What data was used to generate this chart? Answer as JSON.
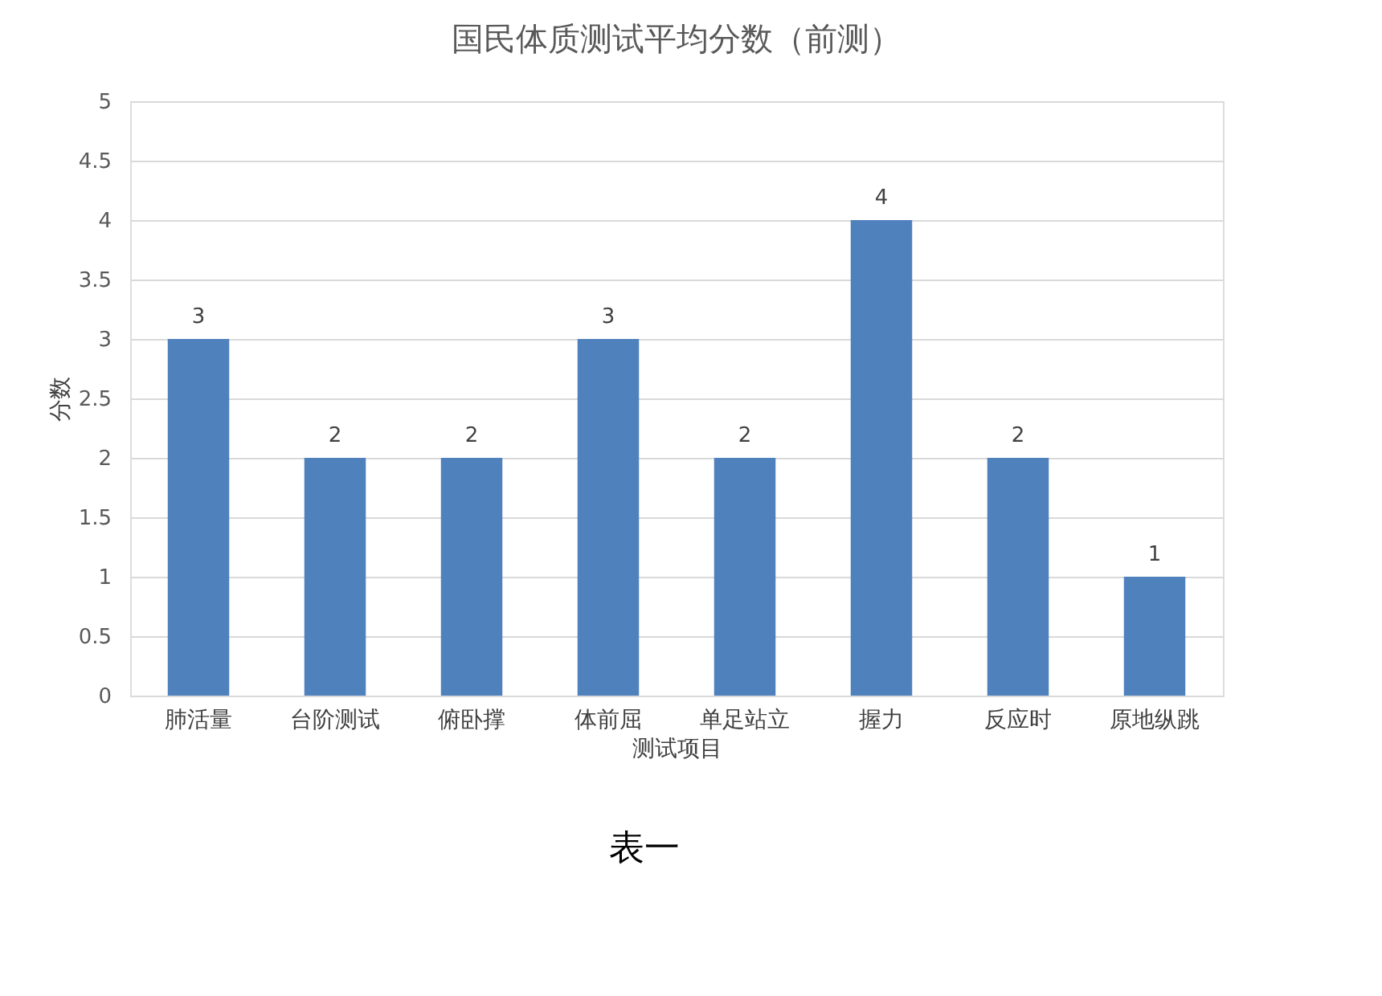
{
  "chart_data": {
    "type": "bar",
    "title": "国民体质测试平均分数（前测）",
    "xlabel": "测试项目",
    "ylabel": "分数",
    "categories": [
      "肺活量",
      "台阶测试",
      "俯卧撑",
      "体前屈",
      "单足站立",
      "握力",
      "反应时",
      "原地纵跳"
    ],
    "values": [
      3,
      2,
      2,
      3,
      2,
      4,
      2,
      1
    ],
    "color": "#4f81bd",
    "ylim": [
      0,
      5
    ],
    "yticks": [
      0,
      0.5,
      1,
      1.5,
      2,
      2.5,
      3,
      3.5,
      4,
      4.5,
      5
    ],
    "grid": "y",
    "data_labels": true,
    "annotations": [
      "表一"
    ]
  }
}
